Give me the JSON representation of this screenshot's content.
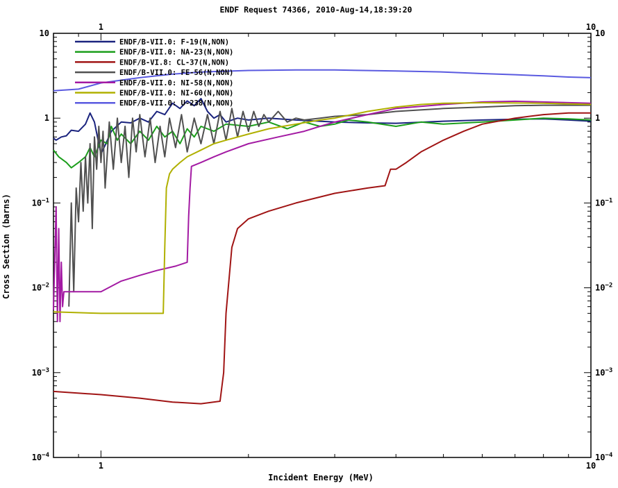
{
  "chart_data": {
    "type": "line",
    "title": "ENDF Request 74366, 2010-Aug-14,18:39:20",
    "xlabel": "Incident Energy (MeV)",
    "ylabel": "Cross Section (barns)",
    "x_scale": "log",
    "y_scale": "log",
    "xlim": [
      0.8,
      10
    ],
    "ylim": [
      0.0001,
      10
    ],
    "x_ticks": [
      {
        "value": 1,
        "label": "1"
      },
      {
        "value": 10,
        "label": "10"
      }
    ],
    "y_ticks": [
      {
        "value": 10,
        "label": "10",
        "exp": ""
      },
      {
        "value": 1,
        "label": "1",
        "exp": ""
      },
      {
        "value": 0.1,
        "label": "10",
        "exp": "−1"
      },
      {
        "value": 0.01,
        "label": "10",
        "exp": "−2"
      },
      {
        "value": 0.001,
        "label": "10",
        "exp": "−3"
      },
      {
        "value": 0.0001,
        "label": "10",
        "exp": "−4"
      }
    ],
    "grid": false,
    "legend_position": "top-left",
    "series": [
      {
        "name": "ENDF/B-VII.0: F-19(N,NON)",
        "color": "#1a237e",
        "points": [
          [
            0.8,
            0.58
          ],
          [
            0.81,
            0.55
          ],
          [
            0.83,
            0.6
          ],
          [
            0.85,
            0.62
          ],
          [
            0.87,
            0.72
          ],
          [
            0.9,
            0.7
          ],
          [
            0.93,
            0.85
          ],
          [
            0.95,
            1.15
          ],
          [
            0.97,
            0.9
          ],
          [
            0.99,
            0.5
          ],
          [
            1.0,
            0.38
          ],
          [
            1.02,
            0.48
          ],
          [
            1.05,
            0.7
          ],
          [
            1.1,
            0.9
          ],
          [
            1.15,
            0.88
          ],
          [
            1.2,
            1.0
          ],
          [
            1.25,
            0.9
          ],
          [
            1.3,
            1.2
          ],
          [
            1.35,
            1.1
          ],
          [
            1.4,
            1.5
          ],
          [
            1.45,
            1.3
          ],
          [
            1.5,
            1.6
          ],
          [
            1.55,
            1.4
          ],
          [
            1.6,
            1.7
          ],
          [
            1.65,
            1.2
          ],
          [
            1.7,
            1.0
          ],
          [
            1.75,
            1.1
          ],
          [
            1.8,
            0.9
          ],
          [
            1.9,
            1.0
          ],
          [
            2.0,
            0.95
          ],
          [
            2.2,
            1.0
          ],
          [
            2.5,
            0.95
          ],
          [
            3.0,
            0.9
          ],
          [
            3.5,
            0.88
          ],
          [
            4.0,
            0.87
          ],
          [
            5.0,
            0.92
          ],
          [
            6.0,
            0.95
          ],
          [
            7.0,
            0.97
          ],
          [
            8.0,
            0.98
          ],
          [
            9.0,
            0.95
          ],
          [
            10.0,
            0.92
          ]
        ]
      },
      {
        "name": "ENDF/B-VII.0: NA-23(N,NON)",
        "color": "#1b9e1b",
        "points": [
          [
            0.8,
            0.42
          ],
          [
            0.82,
            0.35
          ],
          [
            0.85,
            0.3
          ],
          [
            0.87,
            0.26
          ],
          [
            0.9,
            0.3
          ],
          [
            0.93,
            0.35
          ],
          [
            0.95,
            0.45
          ],
          [
            0.97,
            0.35
          ],
          [
            1.0,
            0.55
          ],
          [
            1.03,
            0.5
          ],
          [
            1.05,
            0.8
          ],
          [
            1.08,
            0.55
          ],
          [
            1.1,
            0.65
          ],
          [
            1.15,
            0.5
          ],
          [
            1.2,
            0.7
          ],
          [
            1.25,
            0.55
          ],
          [
            1.3,
            0.8
          ],
          [
            1.35,
            0.6
          ],
          [
            1.4,
            0.7
          ],
          [
            1.45,
            0.5
          ],
          [
            1.5,
            0.75
          ],
          [
            1.55,
            0.6
          ],
          [
            1.6,
            0.8
          ],
          [
            1.7,
            0.7
          ],
          [
            1.8,
            0.85
          ],
          [
            2.0,
            0.8
          ],
          [
            2.2,
            0.9
          ],
          [
            2.4,
            0.75
          ],
          [
            2.6,
            0.9
          ],
          [
            2.8,
            0.8
          ],
          [
            3.0,
            0.85
          ],
          [
            3.2,
            0.95
          ],
          [
            3.5,
            0.9
          ],
          [
            4.0,
            0.8
          ],
          [
            4.5,
            0.9
          ],
          [
            5.0,
            0.85
          ],
          [
            6.0,
            0.9
          ],
          [
            7.0,
            0.95
          ],
          [
            8.0,
            1.0
          ],
          [
            9.0,
            0.98
          ],
          [
            10.0,
            0.95
          ]
        ]
      },
      {
        "name": "ENDF/B-VI.8: CL-37(N,NON)",
        "color": "#a01414",
        "points": [
          [
            0.8,
            0.0006
          ],
          [
            1.0,
            0.00055
          ],
          [
            1.2,
            0.0005
          ],
          [
            1.4,
            0.00045
          ],
          [
            1.6,
            0.00043
          ],
          [
            1.75,
            0.00046
          ],
          [
            1.78,
            0.001
          ],
          [
            1.8,
            0.005
          ],
          [
            1.85,
            0.03
          ],
          [
            1.9,
            0.05
          ],
          [
            2.0,
            0.065
          ],
          [
            2.2,
            0.08
          ],
          [
            2.5,
            0.1
          ],
          [
            3.0,
            0.13
          ],
          [
            3.5,
            0.15
          ],
          [
            3.8,
            0.16
          ],
          [
            3.9,
            0.25
          ],
          [
            4.0,
            0.25
          ],
          [
            4.2,
            0.3
          ],
          [
            4.5,
            0.4
          ],
          [
            5.0,
            0.55
          ],
          [
            5.5,
            0.7
          ],
          [
            6.0,
            0.85
          ],
          [
            7.0,
            1.0
          ],
          [
            8.0,
            1.1
          ],
          [
            9.0,
            1.15
          ],
          [
            10.0,
            1.15
          ]
        ]
      },
      {
        "name": "ENDF/B-VII.0: FE-56(N,NON)",
        "color": "#505050",
        "points": [
          [
            0.86,
            0.006
          ],
          [
            0.87,
            0.1
          ],
          [
            0.88,
            0.009
          ],
          [
            0.89,
            0.15
          ],
          [
            0.9,
            0.06
          ],
          [
            0.91,
            0.3
          ],
          [
            0.92,
            0.08
          ],
          [
            0.93,
            0.35
          ],
          [
            0.94,
            0.1
          ],
          [
            0.95,
            0.5
          ],
          [
            0.96,
            0.05
          ],
          [
            0.97,
            0.6
          ],
          [
            0.98,
            0.25
          ],
          [
            0.99,
            0.8
          ],
          [
            1.0,
            0.3
          ],
          [
            1.01,
            0.7
          ],
          [
            1.02,
            0.15
          ],
          [
            1.04,
            0.9
          ],
          [
            1.06,
            0.25
          ],
          [
            1.08,
            1.0
          ],
          [
            1.1,
            0.3
          ],
          [
            1.12,
            0.8
          ],
          [
            1.14,
            0.2
          ],
          [
            1.16,
            1.0
          ],
          [
            1.18,
            0.4
          ],
          [
            1.2,
            1.1
          ],
          [
            1.23,
            0.35
          ],
          [
            1.26,
            1.0
          ],
          [
            1.29,
            0.3
          ],
          [
            1.32,
            0.8
          ],
          [
            1.35,
            0.35
          ],
          [
            1.38,
            1.0
          ],
          [
            1.42,
            0.45
          ],
          [
            1.46,
            1.1
          ],
          [
            1.5,
            0.4
          ],
          [
            1.55,
            1.0
          ],
          [
            1.6,
            0.5
          ],
          [
            1.65,
            1.1
          ],
          [
            1.7,
            0.5
          ],
          [
            1.75,
            1.2
          ],
          [
            1.8,
            0.55
          ],
          [
            1.85,
            1.3
          ],
          [
            1.9,
            0.6
          ],
          [
            1.95,
            1.2
          ],
          [
            2.0,
            0.7
          ],
          [
            2.05,
            1.2
          ],
          [
            2.1,
            0.8
          ],
          [
            2.15,
            1.1
          ],
          [
            2.2,
            0.9
          ],
          [
            2.3,
            1.2
          ],
          [
            2.4,
            0.9
          ],
          [
            2.5,
            1.0
          ],
          [
            2.6,
            0.95
          ],
          [
            2.8,
            1.0
          ],
          [
            3.0,
            1.05
          ],
          [
            3.5,
            1.1
          ],
          [
            4.0,
            1.2
          ],
          [
            5.0,
            1.3
          ],
          [
            6.0,
            1.35
          ],
          [
            7.0,
            1.4
          ],
          [
            8.0,
            1.42
          ],
          [
            10.0,
            1.42
          ]
        ]
      },
      {
        "name": "ENDF/B-VII.0: NI-58(N,NON)",
        "color": "#a31aa3",
        "points": [
          [
            0.8,
            0.0055
          ],
          [
            0.81,
            0.09
          ],
          [
            0.815,
            0.004
          ],
          [
            0.82,
            0.05
          ],
          [
            0.825,
            0.004
          ],
          [
            0.83,
            0.02
          ],
          [
            0.835,
            0.006
          ],
          [
            0.84,
            0.009
          ],
          [
            0.9,
            0.009
          ],
          [
            1.0,
            0.009
          ],
          [
            1.1,
            0.012
          ],
          [
            1.2,
            0.014
          ],
          [
            1.3,
            0.016
          ],
          [
            1.42,
            0.018
          ],
          [
            1.5,
            0.02
          ],
          [
            1.51,
            0.07
          ],
          [
            1.52,
            0.15
          ],
          [
            1.53,
            0.27
          ],
          [
            1.6,
            0.3
          ],
          [
            1.7,
            0.35
          ],
          [
            1.8,
            0.4
          ],
          [
            2.0,
            0.5
          ],
          [
            2.3,
            0.6
          ],
          [
            2.6,
            0.7
          ],
          [
            2.8,
            0.8
          ],
          [
            3.0,
            0.9
          ],
          [
            3.5,
            1.1
          ],
          [
            4.0,
            1.3
          ],
          [
            5.0,
            1.45
          ],
          [
            6.0,
            1.55
          ],
          [
            7.0,
            1.58
          ],
          [
            8.0,
            1.55
          ],
          [
            10.0,
            1.5
          ]
        ]
      },
      {
        "name": "ENDF/B-VII.0: NI-60(N,NON)",
        "color": "#b0b000",
        "points": [
          [
            0.8,
            0.0052
          ],
          [
            1.0,
            0.005
          ],
          [
            1.2,
            0.005
          ],
          [
            1.34,
            0.005
          ],
          [
            1.35,
            0.03
          ],
          [
            1.36,
            0.15
          ],
          [
            1.38,
            0.22
          ],
          [
            1.4,
            0.25
          ],
          [
            1.45,
            0.3
          ],
          [
            1.5,
            0.35
          ],
          [
            1.6,
            0.42
          ],
          [
            1.7,
            0.5
          ],
          [
            1.8,
            0.55
          ],
          [
            2.0,
            0.65
          ],
          [
            2.2,
            0.75
          ],
          [
            2.5,
            0.85
          ],
          [
            2.8,
            0.95
          ],
          [
            3.0,
            1.0
          ],
          [
            3.5,
            1.2
          ],
          [
            4.0,
            1.35
          ],
          [
            4.5,
            1.45
          ],
          [
            5.0,
            1.5
          ],
          [
            6.0,
            1.52
          ],
          [
            8.0,
            1.5
          ],
          [
            10.0,
            1.45
          ]
        ]
      },
      {
        "name": "ENDF/B-VII.0: U-238(N,NON)",
        "color": "#5a5ae0",
        "points": [
          [
            0.8,
            2.1
          ],
          [
            0.9,
            2.2
          ],
          [
            1.0,
            2.6
          ],
          [
            1.2,
            3.0
          ],
          [
            1.4,
            3.3
          ],
          [
            1.6,
            3.5
          ],
          [
            2.0,
            3.65
          ],
          [
            2.5,
            3.7
          ],
          [
            3.0,
            3.7
          ],
          [
            4.0,
            3.6
          ],
          [
            5.0,
            3.5
          ],
          [
            6.0,
            3.35
          ],
          [
            7.0,
            3.25
          ],
          [
            8.0,
            3.15
          ],
          [
            9.0,
            3.05
          ],
          [
            10.0,
            3.0
          ]
        ]
      }
    ]
  }
}
